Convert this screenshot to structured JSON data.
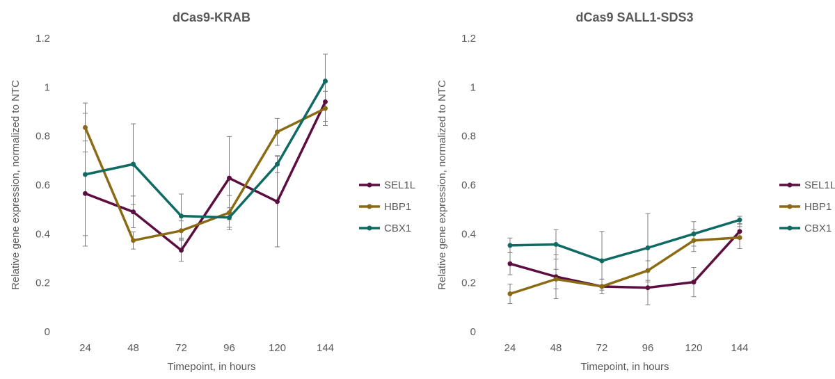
{
  "chart_data": [
    {
      "type": "line",
      "title": "dCas9-KRAB",
      "xlabel": "Timepoint, in hours",
      "ylabel": "Relative gene expression, normalized to NTC",
      "categories": [
        "24",
        "48",
        "72",
        "96",
        "120",
        "144"
      ],
      "ylim": [
        0,
        1.2
      ],
      "yticks": [
        "0",
        "0.2",
        "0.4",
        "0.6",
        "0.8",
        "1",
        "1.2"
      ],
      "grid": false,
      "legend": "right",
      "series": [
        {
          "name": "SEL1L",
          "color": "#5b0e3f",
          "values": [
            0.565,
            0.49,
            0.333,
            0.628,
            0.532,
            0.94
          ],
          "err": [
            0.215,
            0.065,
            0.045,
            0.17,
            0.185,
            0.08
          ]
        },
        {
          "name": "HBP1",
          "color": "#8b6a14",
          "values": [
            0.835,
            0.373,
            0.413,
            0.487,
            0.817,
            0.913
          ],
          "err": [
            0.1,
            0.035,
            0.04,
            0.07,
            0.055,
            0.07
          ]
        },
        {
          "name": "CBX1",
          "color": "#0e6a62",
          "values": [
            0.643,
            0.685,
            0.473,
            0.467,
            0.685,
            1.025
          ],
          "err": [
            0.25,
            0.165,
            0.09,
            0.04,
            0.035,
            0.11
          ]
        }
      ]
    },
    {
      "type": "line",
      "title": "dCas9 SALL1-SDS3",
      "xlabel": "Timepoint, in hours",
      "ylabel": "Relative gene expression, normalized to NTC",
      "categories": [
        "24",
        "48",
        "72",
        "96",
        "120",
        "144"
      ],
      "ylim": [
        0,
        1.2
      ],
      "yticks": [
        "0",
        "0.2",
        "0.4",
        "0.6",
        "0.8",
        "1",
        "1.2"
      ],
      "grid": false,
      "legend": "right",
      "series": [
        {
          "name": "SEL1L",
          "color": "#5b0e3f",
          "values": [
            0.278,
            0.225,
            0.185,
            0.18,
            0.203,
            0.41
          ],
          "err": [
            0.045,
            0.09,
            0.03,
            0.07,
            0.06,
            0.03
          ]
        },
        {
          "name": "HBP1",
          "color": "#8b6a14",
          "values": [
            0.155,
            0.215,
            0.185,
            0.25,
            0.373,
            0.385
          ],
          "err": [
            0.04,
            0.04,
            0.03,
            0.04,
            0.045,
            0.045
          ]
        },
        {
          "name": "CBX1",
          "color": "#0e6a62",
          "values": [
            0.353,
            0.357,
            0.29,
            0.343,
            0.4,
            0.457
          ],
          "err": [
            0.03,
            0.06,
            0.12,
            0.14,
            0.05,
            0.015
          ]
        }
      ]
    }
  ]
}
